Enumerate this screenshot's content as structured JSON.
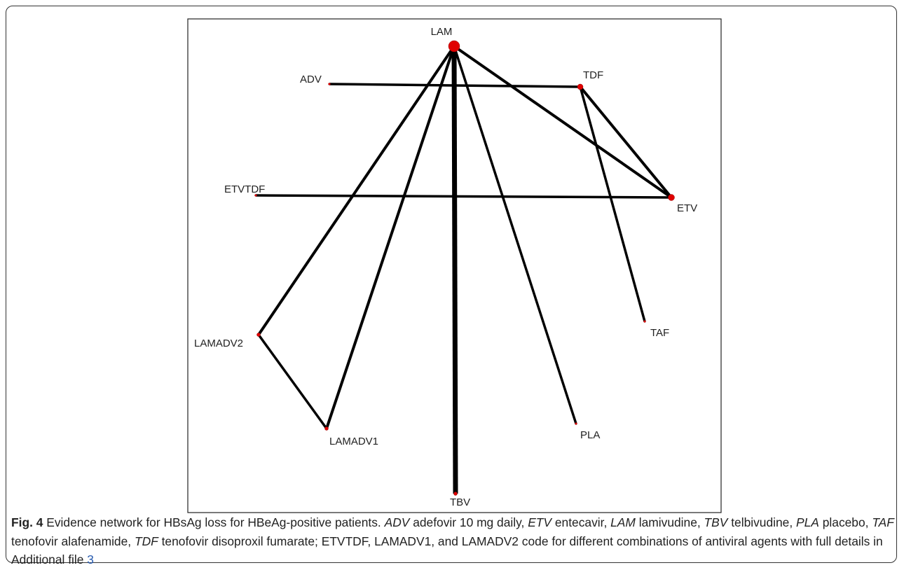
{
  "figure": {
    "nodes": [
      "LAM",
      "ADV",
      "TDF",
      "ETVTDF",
      "ETV",
      "TAF",
      "LAMADV2",
      "LAMADV1",
      "PLA",
      "TBV"
    ],
    "caption": [
      {
        "text": "Fig. 4",
        "style": "bold"
      },
      {
        "text": " Evidence network for HBsAg loss for HBeAg-positive patients. ",
        "style": "normal"
      },
      {
        "text": "ADV",
        "style": "italic"
      },
      {
        "text": " adefovir 10 mg daily, ",
        "style": "normal"
      },
      {
        "text": "ETV",
        "style": "italic"
      },
      {
        "text": " entecavir, ",
        "style": "normal"
      },
      {
        "text": "LAM",
        "style": "italic"
      },
      {
        "text": " lamivudine, ",
        "style": "normal"
      },
      {
        "text": "TBV",
        "style": "italic"
      },
      {
        "text": " telbivudine, ",
        "style": "normal"
      },
      {
        "text": "PLA",
        "style": "italic"
      },
      {
        "text": " placebo, ",
        "style": "normal"
      },
      {
        "text": "TAF",
        "style": "italic"
      },
      {
        "text": " tenofovir alafenamide, ",
        "style": "normal"
      },
      {
        "text": "TDF",
        "style": "italic"
      },
      {
        "text": " tenofovir disoproxil fumarate; ETVTDF, LAMADV1, and LAMADV2 code for different combinations of antiviral agents with full details in Additional file ",
        "style": "normal"
      },
      {
        "text": "3",
        "style": "link"
      }
    ]
  }
}
